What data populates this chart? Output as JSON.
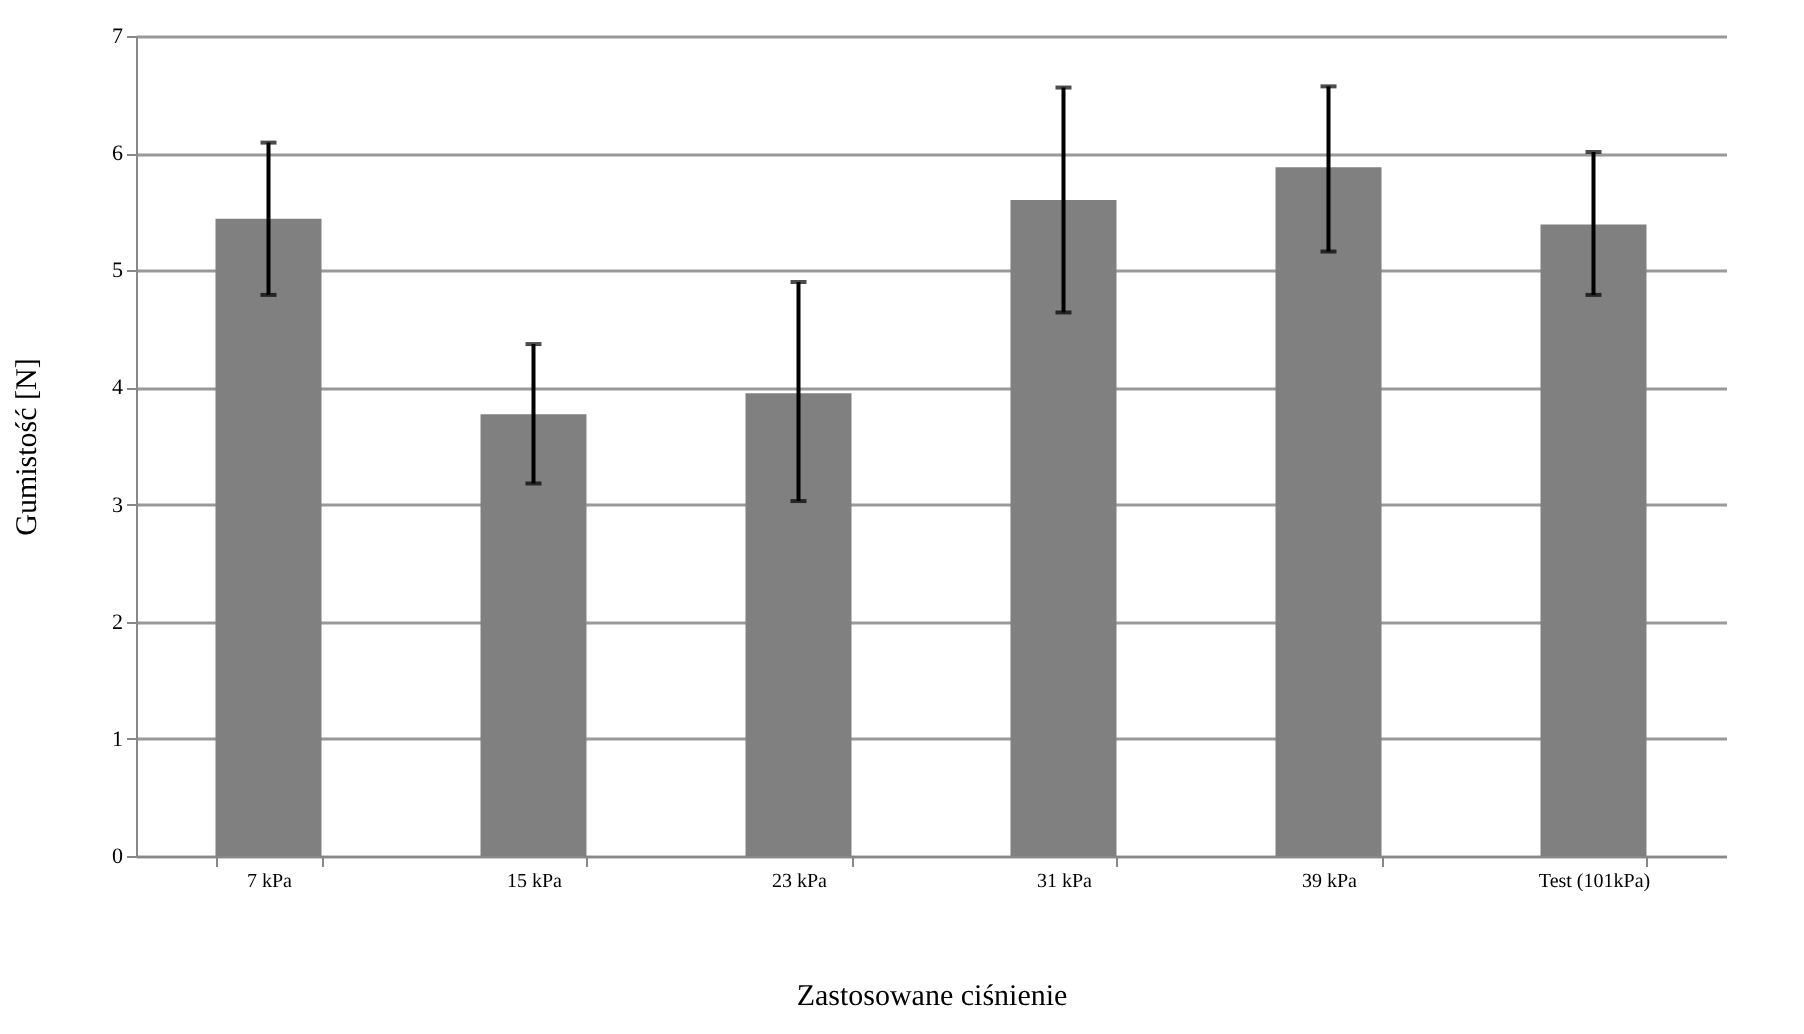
{
  "chart_data": {
    "type": "bar",
    "xlabel": "Zastosowane ciśnienie",
    "ylabel": "Gumistość [N]",
    "categories": [
      "7 kPa",
      "15 kPa",
      "23 kPa",
      "31 kPa",
      "39 kPa",
      "Test (101kPa)"
    ],
    "series": [
      {
        "color": "#808080",
        "values": [
          5.44,
          3.77,
          3.95,
          5.6,
          5.88,
          5.39
        ],
        "errors": [
          [
            4.79,
            6.09
          ],
          [
            3.18,
            4.37
          ],
          [
            3.03,
            4.9
          ],
          [
            4.64,
            6.56
          ],
          [
            5.16,
            6.57
          ],
          [
            4.79,
            6.01
          ]
        ]
      }
    ],
    "ylim": [
      0,
      7
    ],
    "yticks": [
      0,
      1,
      2,
      3,
      4,
      5,
      6,
      7
    ],
    "grid": "y"
  }
}
